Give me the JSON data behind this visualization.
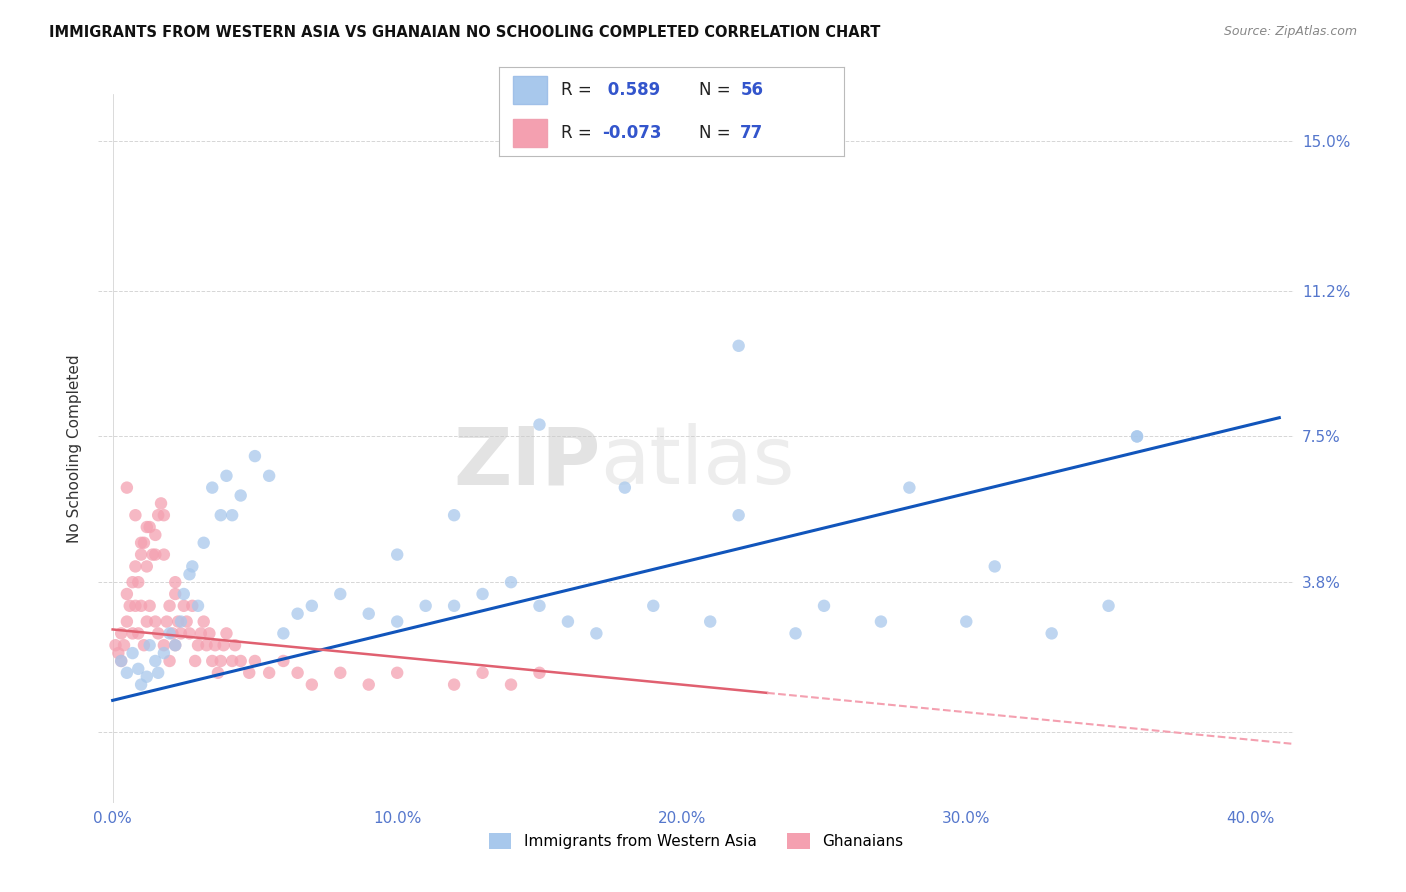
{
  "title": "IMMIGRANTS FROM WESTERN ASIA VS GHANAIAN NO SCHOOLING COMPLETED CORRELATION CHART",
  "source": "Source: ZipAtlas.com",
  "ylabel": "No Schooling Completed",
  "yticks": [
    0.0,
    0.038,
    0.075,
    0.112,
    0.15
  ],
  "ytick_labels": [
    "",
    "3.8%",
    "7.5%",
    "11.2%",
    "15.0%"
  ],
  "xticks": [
    0.0,
    0.1,
    0.2,
    0.3,
    0.4
  ],
  "xtick_labels": [
    "0.0%",
    "10.0%",
    "20.0%",
    "30.0%",
    "40.0%"
  ],
  "xlim": [
    -0.005,
    0.415
  ],
  "ylim": [
    -0.018,
    0.162
  ],
  "legend_blue_r": "R =  0.589",
  "legend_blue_n": "N = 56",
  "legend_pink_r": "R = -0.073",
  "legend_pink_n": "N = 77",
  "blue_color": "#A8C8EC",
  "pink_color": "#F4A0B0",
  "blue_line_color": "#1155BB",
  "pink_line_solid_color": "#E06070",
  "pink_line_dash_color": "#F4A0B0",
  "watermark_text": "ZIPatlas",
  "blue_r_color": "#3355CC",
  "blue_n_color": "#3355CC",
  "legend_text_color": "#222222",
  "tick_color": "#5577CC",
  "title_color": "#111111",
  "source_color": "#888888",
  "grid_color": "#CCCCCC",
  "background_color": "#FFFFFF",
  "blue_line_intercept": 0.008,
  "blue_line_slope": 0.175,
  "pink_line_intercept": 0.026,
  "pink_line_slope": -0.07,
  "blue_scatter_x": [
    0.003,
    0.005,
    0.007,
    0.009,
    0.01,
    0.012,
    0.013,
    0.015,
    0.016,
    0.018,
    0.02,
    0.022,
    0.024,
    0.025,
    0.027,
    0.028,
    0.03,
    0.032,
    0.035,
    0.038,
    0.04,
    0.042,
    0.045,
    0.05,
    0.055,
    0.06,
    0.065,
    0.07,
    0.08,
    0.09,
    0.1,
    0.11,
    0.12,
    0.13,
    0.14,
    0.15,
    0.16,
    0.17,
    0.19,
    0.21,
    0.22,
    0.24,
    0.25,
    0.27,
    0.28,
    0.3,
    0.31,
    0.33,
    0.35,
    0.36,
    0.1,
    0.12,
    0.15,
    0.18,
    0.22,
    0.36
  ],
  "blue_scatter_y": [
    0.018,
    0.015,
    0.02,
    0.016,
    0.012,
    0.014,
    0.022,
    0.018,
    0.015,
    0.02,
    0.025,
    0.022,
    0.028,
    0.035,
    0.04,
    0.042,
    0.032,
    0.048,
    0.062,
    0.055,
    0.065,
    0.055,
    0.06,
    0.07,
    0.065,
    0.025,
    0.03,
    0.032,
    0.035,
    0.03,
    0.028,
    0.032,
    0.032,
    0.035,
    0.038,
    0.032,
    0.028,
    0.025,
    0.032,
    0.028,
    0.055,
    0.025,
    0.032,
    0.028,
    0.062,
    0.028,
    0.042,
    0.025,
    0.032,
    0.075,
    0.045,
    0.055,
    0.078,
    0.062,
    0.098,
    0.075
  ],
  "pink_scatter_x": [
    0.001,
    0.002,
    0.003,
    0.003,
    0.004,
    0.005,
    0.005,
    0.006,
    0.007,
    0.007,
    0.008,
    0.008,
    0.009,
    0.009,
    0.01,
    0.01,
    0.011,
    0.011,
    0.012,
    0.012,
    0.013,
    0.013,
    0.014,
    0.015,
    0.015,
    0.016,
    0.016,
    0.017,
    0.018,
    0.018,
    0.019,
    0.02,
    0.02,
    0.021,
    0.022,
    0.022,
    0.023,
    0.024,
    0.025,
    0.026,
    0.027,
    0.028,
    0.029,
    0.03,
    0.031,
    0.032,
    0.033,
    0.034,
    0.035,
    0.036,
    0.037,
    0.038,
    0.039,
    0.04,
    0.042,
    0.043,
    0.045,
    0.048,
    0.05,
    0.055,
    0.06,
    0.065,
    0.07,
    0.08,
    0.09,
    0.1,
    0.12,
    0.13,
    0.14,
    0.15,
    0.005,
    0.008,
    0.01,
    0.012,
    0.015,
    0.018,
    0.022
  ],
  "pink_scatter_y": [
    0.022,
    0.02,
    0.025,
    0.018,
    0.022,
    0.028,
    0.035,
    0.032,
    0.038,
    0.025,
    0.032,
    0.042,
    0.038,
    0.025,
    0.045,
    0.032,
    0.048,
    0.022,
    0.042,
    0.028,
    0.052,
    0.032,
    0.045,
    0.05,
    0.028,
    0.055,
    0.025,
    0.058,
    0.045,
    0.022,
    0.028,
    0.032,
    0.018,
    0.025,
    0.035,
    0.022,
    0.028,
    0.025,
    0.032,
    0.028,
    0.025,
    0.032,
    0.018,
    0.022,
    0.025,
    0.028,
    0.022,
    0.025,
    0.018,
    0.022,
    0.015,
    0.018,
    0.022,
    0.025,
    0.018,
    0.022,
    0.018,
    0.015,
    0.018,
    0.015,
    0.018,
    0.015,
    0.012,
    0.015,
    0.012,
    0.015,
    0.012,
    0.015,
    0.012,
    0.015,
    0.062,
    0.055,
    0.048,
    0.052,
    0.045,
    0.055,
    0.038
  ]
}
